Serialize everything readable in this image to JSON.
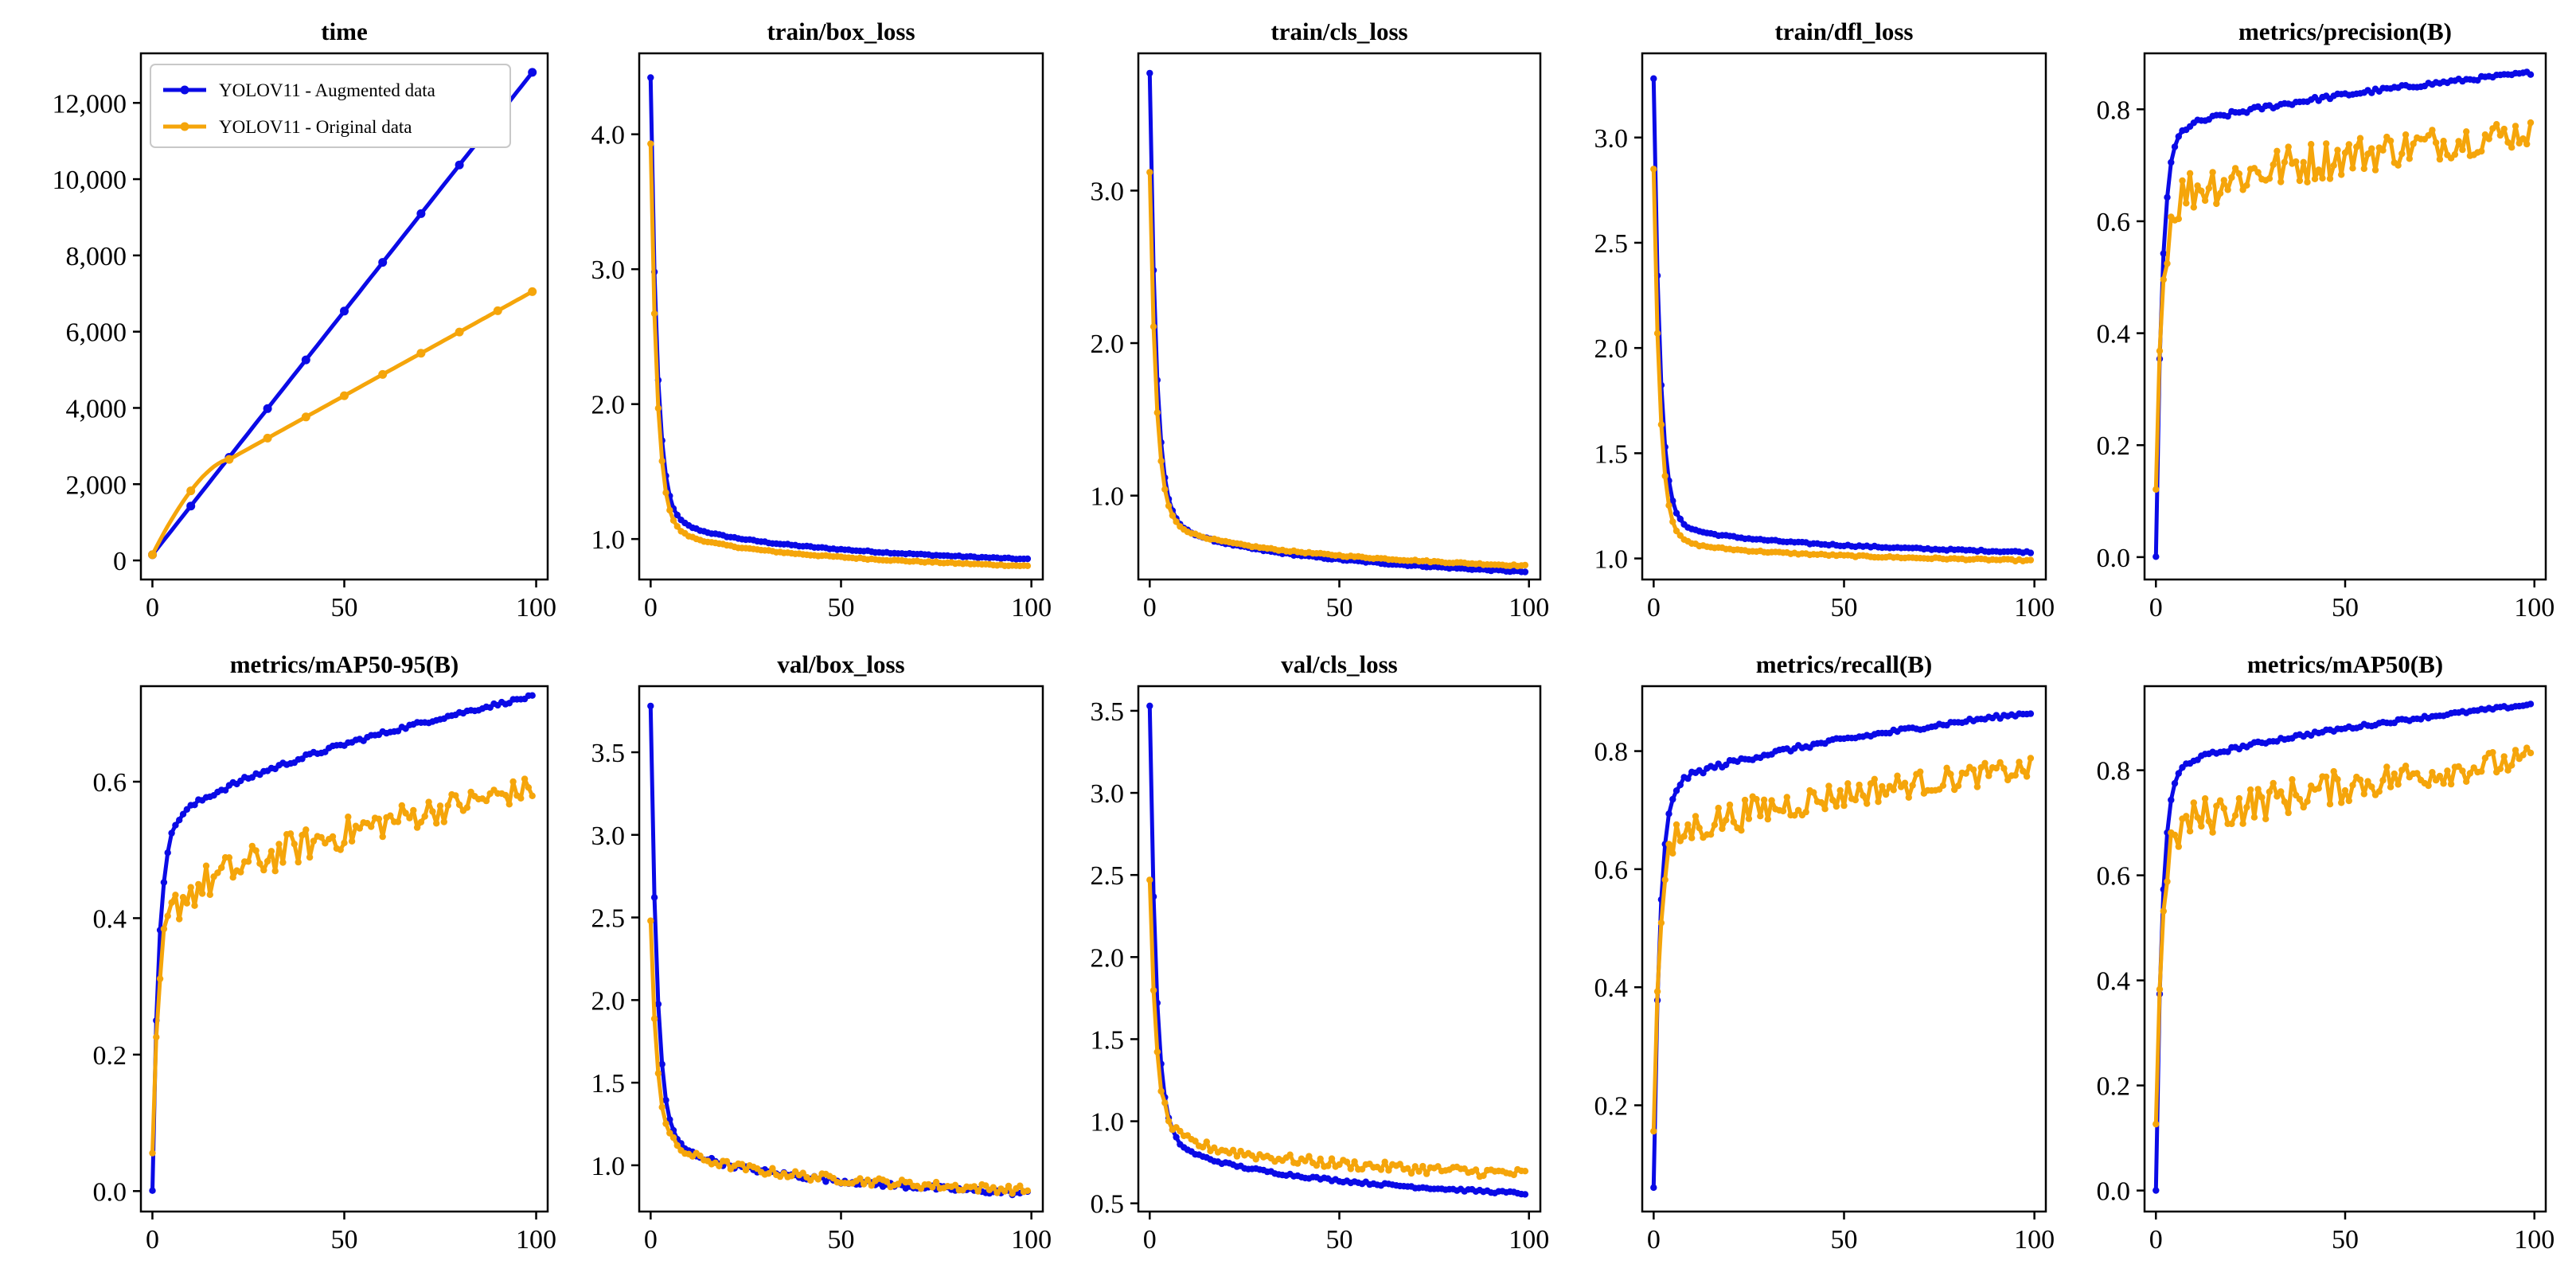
{
  "colors": {
    "augmented": "#0a0ae6",
    "original": "#f5a50a",
    "frame": "#000000"
  },
  "legend": {
    "augmented": "YOLOV11 - Augmented data",
    "original": "YOLOV11 - Original data"
  },
  "chart_data": [
    {
      "type": "line",
      "title": "time",
      "xlim": [
        -3,
        103
      ],
      "ylim": [
        -500,
        13300
      ],
      "xticks": [
        0,
        50,
        100
      ],
      "yticks": [
        0,
        2000,
        4000,
        6000,
        8000,
        10000,
        12000
      ],
      "ytick_labels": [
        "0",
        "2,000",
        "4,000",
        "6,000",
        "8,000",
        "10,000",
        "12,000"
      ],
      "legend_position": "upper-left",
      "series": [
        {
          "name": "YOLOV11 - Augmented data",
          "model": "linear",
          "p": [
            150,
            12800
          ]
        },
        {
          "name": "YOLOV11 - Original data",
          "model": "curve",
          "p": [
            150,
            2650,
            7050
          ]
        }
      ]
    },
    {
      "type": "line",
      "title": "train/box_loss",
      "xlim": [
        -3,
        103
      ],
      "ylim": [
        0.7,
        4.6
      ],
      "xticks": [
        0,
        50,
        100
      ],
      "yticks": [
        1.0,
        2.0,
        3.0,
        4.0
      ],
      "ytick_labels": [
        "1.0",
        "2.0",
        "3.0",
        "4.0"
      ],
      "series": [
        {
          "name": "YOLOV11 - Augmented data",
          "model": "decay",
          "p": [
            4.42,
            1.35,
            0.85,
            0.5
          ],
          "noise": 0.005
        },
        {
          "name": "YOLOV11 - Original data",
          "model": "decay",
          "p": [
            3.93,
            1.25,
            0.8,
            0.5
          ],
          "noise": 0.005
        }
      ]
    },
    {
      "type": "line",
      "title": "train/cls_loss",
      "xlim": [
        -3,
        103
      ],
      "ylim": [
        0.45,
        3.9
      ],
      "xticks": [
        0,
        50,
        100
      ],
      "yticks": [
        1.0,
        2.0,
        3.0
      ],
      "ytick_labels": [
        "1.0",
        "2.0",
        "3.0"
      ],
      "series": [
        {
          "name": "YOLOV11 - Augmented data",
          "model": "decay",
          "p": [
            3.77,
            1.05,
            0.5,
            0.45
          ],
          "noise": 0.005
        },
        {
          "name": "YOLOV11 - Original data",
          "model": "decay",
          "p": [
            3.12,
            1.0,
            0.54,
            0.45
          ],
          "noise": 0.005
        }
      ]
    },
    {
      "type": "line",
      "title": "train/dfl_loss",
      "xlim": [
        -3,
        103
      ],
      "ylim": [
        0.9,
        3.4
      ],
      "xticks": [
        0,
        50,
        100
      ],
      "yticks": [
        1.0,
        1.5,
        2.0,
        2.5,
        3.0
      ],
      "ytick_labels": [
        "1.0",
        "1.5",
        "2.0",
        "2.5",
        "3.0"
      ],
      "series": [
        {
          "name": "YOLOV11 - Augmented data",
          "model": "decay",
          "p": [
            3.28,
            1.25,
            1.03,
            0.5
          ],
          "noise": 0.004
        },
        {
          "name": "YOLOV11 - Original data",
          "model": "decay",
          "p": [
            2.85,
            1.15,
            0.99,
            0.5
          ],
          "noise": 0.004
        }
      ]
    },
    {
      "type": "line",
      "title": "metrics/precision(B)",
      "xlim": [
        -3,
        103
      ],
      "ylim": [
        -0.04,
        0.9
      ],
      "xticks": [
        0,
        50,
        100
      ],
      "yticks": [
        0.0,
        0.2,
        0.4,
        0.6,
        0.8
      ],
      "ytick_labels": [
        "0.0",
        "0.2",
        "0.4",
        "0.6",
        "0.8"
      ],
      "series": [
        {
          "name": "YOLOV11 - Augmented data",
          "model": "rise",
          "p": [
            0.0,
            0.74,
            0.865,
            0.5
          ],
          "noise": 0.005
        },
        {
          "name": "YOLOV11 - Original data",
          "model": "rise",
          "p": [
            0.13,
            0.62,
            0.76,
            0.5
          ],
          "noise": 0.045
        }
      ]
    },
    {
      "type": "line",
      "title": "metrics/mAP50-95(B)",
      "xlim": [
        -3,
        103
      ],
      "ylim": [
        -0.03,
        0.74
      ],
      "xticks": [
        0,
        50,
        100
      ],
      "yticks": [
        0.0,
        0.2,
        0.4,
        0.6
      ],
      "ytick_labels": [
        "0.0",
        "0.2",
        "0.4",
        "0.6"
      ],
      "series": [
        {
          "name": "YOLOV11 - Augmented data",
          "model": "rise",
          "p": [
            0.0,
            0.5,
            0.725,
            0.5
          ],
          "noise": 0.004
        },
        {
          "name": "YOLOV11 - Original data",
          "model": "rise",
          "p": [
            0.05,
            0.38,
            0.59,
            0.5
          ],
          "noise": 0.03
        }
      ]
    },
    {
      "type": "line",
      "title": "val/box_loss",
      "xlim": [
        -3,
        103
      ],
      "ylim": [
        0.72,
        3.9
      ],
      "xticks": [
        0,
        50,
        100
      ],
      "yticks": [
        1.0,
        1.5,
        2.0,
        2.5,
        3.0,
        3.5
      ],
      "ytick_labels": [
        "1.0",
        "1.5",
        "2.0",
        "2.5",
        "3.0",
        "3.5"
      ],
      "series": [
        {
          "name": "YOLOV11 - Augmented data",
          "model": "decay",
          "p": [
            3.78,
            1.35,
            0.83,
            0.5
          ],
          "noise": 0.015
        },
        {
          "name": "YOLOV11 - Original data",
          "model": "decay",
          "p": [
            2.48,
            1.3,
            0.85,
            0.5
          ],
          "noise": 0.025
        }
      ]
    },
    {
      "type": "line",
      "title": "val/cls_loss",
      "xlim": [
        -3,
        103
      ],
      "ylim": [
        0.45,
        3.65
      ],
      "xticks": [
        0,
        50,
        100
      ],
      "yticks": [
        0.5,
        1.0,
        1.5,
        2.0,
        2.5,
        3.0,
        3.5
      ],
      "ytick_labels": [
        "0.5",
        "1.0",
        "1.5",
        "2.0",
        "2.5",
        "3.0",
        "3.5"
      ],
      "series": [
        {
          "name": "YOLOV11 - Augmented data",
          "model": "decay",
          "p": [
            3.53,
            1.1,
            0.56,
            0.55
          ],
          "noise": 0.008
        },
        {
          "name": "YOLOV11 - Original data",
          "model": "decay",
          "p": [
            2.47,
            1.1,
            0.68,
            0.45
          ],
          "noise": 0.03
        }
      ]
    },
    {
      "type": "line",
      "title": "metrics/recall(B)",
      "xlim": [
        -3,
        103
      ],
      "ylim": [
        0.02,
        0.91
      ],
      "xticks": [
        0,
        50,
        100
      ],
      "yticks": [
        0.2,
        0.4,
        0.6,
        0.8
      ],
      "ytick_labels": [
        "0.2",
        "0.4",
        "0.6",
        "0.8"
      ],
      "series": [
        {
          "name": "YOLOV11 - Augmented data",
          "model": "rise",
          "p": [
            0.06,
            0.72,
            0.865,
            0.5
          ],
          "noise": 0.005
        },
        {
          "name": "YOLOV11 - Original data",
          "model": "rise",
          "p": [
            0.16,
            0.63,
            0.77,
            0.5
          ],
          "noise": 0.03
        }
      ]
    },
    {
      "type": "line",
      "title": "metrics/mAP50(B)",
      "xlim": [
        -3,
        103
      ],
      "ylim": [
        -0.04,
        0.96
      ],
      "xticks": [
        0,
        50,
        100
      ],
      "yticks": [
        0.0,
        0.2,
        0.4,
        0.6,
        0.8
      ],
      "ytick_labels": [
        "0.0",
        "0.2",
        "0.4",
        "0.6",
        "0.8"
      ],
      "series": [
        {
          "name": "YOLOV11 - Augmented data",
          "model": "rise",
          "p": [
            0.0,
            0.78,
            0.925,
            0.5
          ],
          "noise": 0.004
        },
        {
          "name": "YOLOV11 - Original data",
          "model": "rise",
          "p": [
            0.13,
            0.66,
            0.82,
            0.5
          ],
          "noise": 0.04
        }
      ]
    }
  ]
}
